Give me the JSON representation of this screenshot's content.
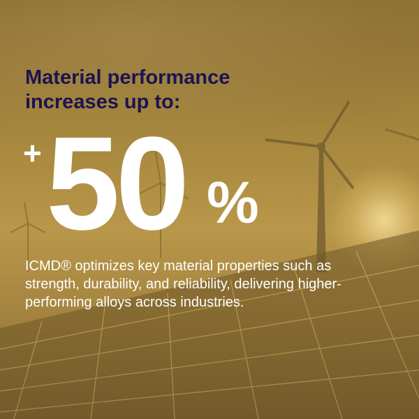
{
  "headline": {
    "line1": "Material performance",
    "line2": "increases up to:"
  },
  "stat": {
    "prefix": "+",
    "value": "50",
    "suffix": "%"
  },
  "description": "ICMD® optimizes key material properties such as strength, durability, and reliability, delivering higher-performing alloys across industries.",
  "background": {
    "subject": "wind turbines and solar panels at sunset",
    "overlay_color": "#b08a3a",
    "headline_color": "#1b1450",
    "text_color": "#ffffff"
  }
}
